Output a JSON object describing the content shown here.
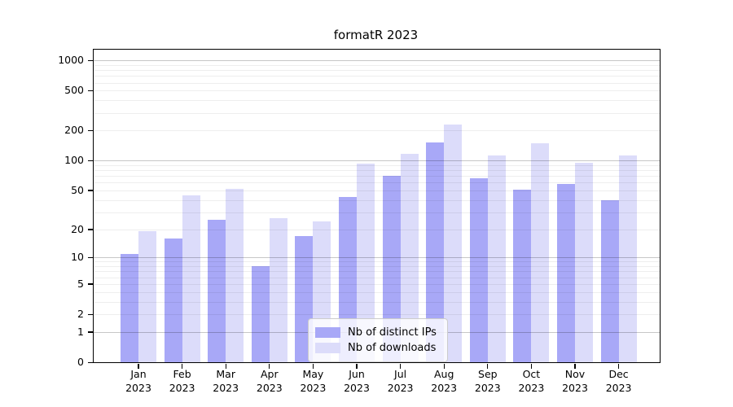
{
  "chart_data": {
    "type": "bar",
    "title": "formatR 2023",
    "categories": [
      "Jan",
      "Feb",
      "Mar",
      "Apr",
      "May",
      "Jun",
      "Jul",
      "Aug",
      "Sep",
      "Oct",
      "Nov",
      "Dec"
    ],
    "year_label": "2023",
    "series": [
      {
        "name": "Nb of distinct IPs",
        "color": "#a8a8f7",
        "values": [
          11,
          16,
          25,
          8,
          17,
          43,
          70,
          152,
          67,
          51,
          58,
          40
        ]
      },
      {
        "name": "Nb of downloads",
        "color": "#dcdcfa",
        "values": [
          19,
          45,
          52,
          26,
          24,
          93,
          118,
          230,
          112,
          150,
          96,
          112
        ]
      }
    ],
    "xlabel": "",
    "ylabel": "",
    "y_scale": "log1p",
    "y_ticks": [
      0,
      1,
      2,
      5,
      10,
      20,
      50,
      100,
      200,
      500,
      1000
    ],
    "y_major_gridlines": [
      1,
      10,
      100,
      1000
    ],
    "ylim": [
      0,
      1280
    ],
    "grid": true,
    "legend_position": "bottom-center"
  }
}
